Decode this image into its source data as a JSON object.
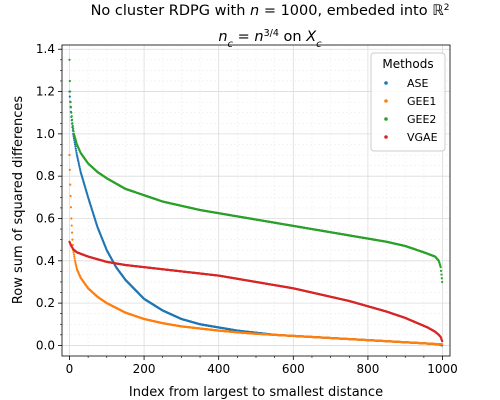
{
  "chart_data": {
    "type": "scatter",
    "title_line1": "No cluster RDPG with n = 1000, embeded into ℝ²",
    "title_line2": "n_c = n^{3/4} on X_c",
    "xlabel": "Index from largest to smallest distance",
    "ylabel": "Row sum of squared differences",
    "xlim": [
      -20,
      1020
    ],
    "ylim": [
      -0.05,
      1.42
    ],
    "xticks": [
      0,
      200,
      400,
      600,
      800,
      1000
    ],
    "yticks": [
      0.0,
      0.2,
      0.4,
      0.6,
      0.8,
      1.0,
      1.2,
      1.4
    ],
    "grid": true,
    "legend": {
      "title": "Methods",
      "placement": "top-right"
    },
    "n_points": 1000,
    "series": [
      {
        "name": "ASE",
        "color": "#1f77b4",
        "x": [
          0,
          5,
          10,
          20,
          30,
          50,
          75,
          100,
          125,
          150,
          200,
          250,
          300,
          350,
          400,
          450,
          500,
          550,
          600,
          650,
          700,
          750,
          800,
          850,
          900,
          950,
          990,
          999
        ],
        "y": [
          1.2,
          1.08,
          1.0,
          0.9,
          0.82,
          0.7,
          0.56,
          0.45,
          0.37,
          0.31,
          0.22,
          0.165,
          0.125,
          0.1,
          0.085,
          0.07,
          0.06,
          0.05,
          0.045,
          0.04,
          0.035,
          0.03,
          0.025,
          0.02,
          0.015,
          0.01,
          0.005,
          0.0
        ]
      },
      {
        "name": "GEE1",
        "color": "#ff7f0e",
        "x": [
          0,
          2,
          5,
          8,
          10,
          15,
          20,
          30,
          50,
          75,
          100,
          150,
          200,
          250,
          300,
          350,
          400,
          450,
          500,
          550,
          600,
          650,
          700,
          750,
          800,
          850,
          900,
          950,
          999
        ],
        "y": [
          0.9,
          0.76,
          0.6,
          0.5,
          0.45,
          0.4,
          0.36,
          0.32,
          0.27,
          0.23,
          0.2,
          0.155,
          0.125,
          0.105,
          0.09,
          0.08,
          0.07,
          0.062,
          0.055,
          0.05,
          0.045,
          0.04,
          0.035,
          0.03,
          0.025,
          0.02,
          0.015,
          0.01,
          0.005
        ]
      },
      {
        "name": "GEE2",
        "color": "#2ca02c",
        "x": [
          0,
          1,
          2,
          3,
          5,
          8,
          12,
          20,
          30,
          50,
          75,
          100,
          150,
          200,
          250,
          300,
          350,
          400,
          450,
          500,
          550,
          600,
          650,
          700,
          750,
          800,
          850,
          900,
          950,
          980,
          990,
          995,
          999
        ],
        "y": [
          1.35,
          1.25,
          1.2,
          1.15,
          1.1,
          1.05,
          1.0,
          0.95,
          0.91,
          0.86,
          0.82,
          0.79,
          0.74,
          0.71,
          0.68,
          0.66,
          0.64,
          0.625,
          0.61,
          0.595,
          0.58,
          0.565,
          0.55,
          0.535,
          0.52,
          0.505,
          0.49,
          0.47,
          0.44,
          0.42,
          0.4,
          0.37,
          0.3
        ]
      },
      {
        "name": "VGAE",
        "color": "#d62728",
        "x": [
          0,
          5,
          10,
          20,
          50,
          100,
          150,
          200,
          250,
          300,
          350,
          400,
          450,
          500,
          550,
          600,
          650,
          700,
          750,
          800,
          850,
          900,
          940,
          960,
          980,
          990,
          995,
          999
        ],
        "y": [
          0.49,
          0.47,
          0.455,
          0.44,
          0.42,
          0.395,
          0.38,
          0.37,
          0.36,
          0.35,
          0.34,
          0.33,
          0.315,
          0.3,
          0.285,
          0.27,
          0.25,
          0.23,
          0.21,
          0.185,
          0.16,
          0.13,
          0.1,
          0.085,
          0.065,
          0.05,
          0.04,
          0.02
        ]
      }
    ]
  }
}
